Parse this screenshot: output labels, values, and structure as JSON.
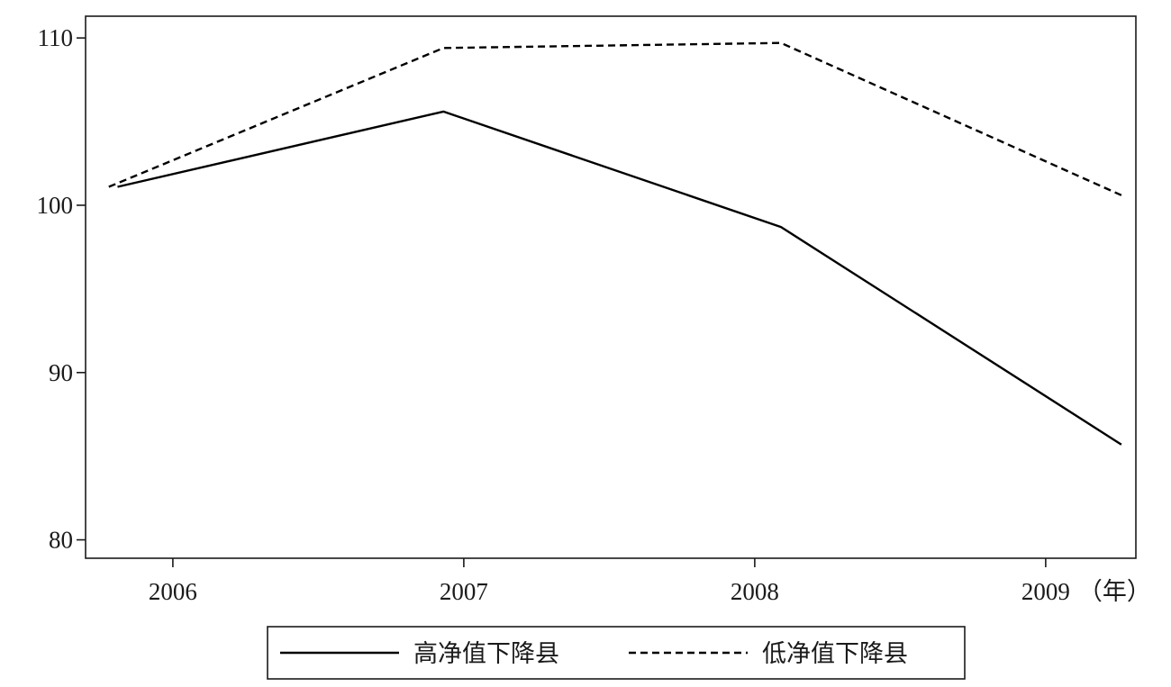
{
  "chart_data": {
    "type": "line",
    "x": [
      2005.81,
      2006.93,
      2008.09,
      2009.26
    ],
    "x_ticks": [
      "2006",
      "2007",
      "2008",
      "2009"
    ],
    "x_unit": "（年）",
    "y_ticks": [
      "80",
      "90",
      "100",
      "110"
    ],
    "ylim": [
      78.9,
      111.3
    ],
    "xlim": [
      2005.7,
      2009.31
    ],
    "grid": false,
    "legend_placement": "bottom",
    "series": [
      {
        "name": "高净值下降县",
        "style": "solid",
        "color": "#000000",
        "x": [
          2005.81,
          2006.93,
          2008.09,
          2009.26
        ],
        "values": [
          101.1,
          105.6,
          98.7,
          85.7
        ]
      },
      {
        "name": "低净值下降县",
        "style": "dashed",
        "color": "#000000",
        "x": [
          2005.78,
          2006.93,
          2008.09,
          2009.26
        ],
        "values": [
          101.1,
          109.4,
          109.7,
          100.6
        ]
      }
    ]
  }
}
